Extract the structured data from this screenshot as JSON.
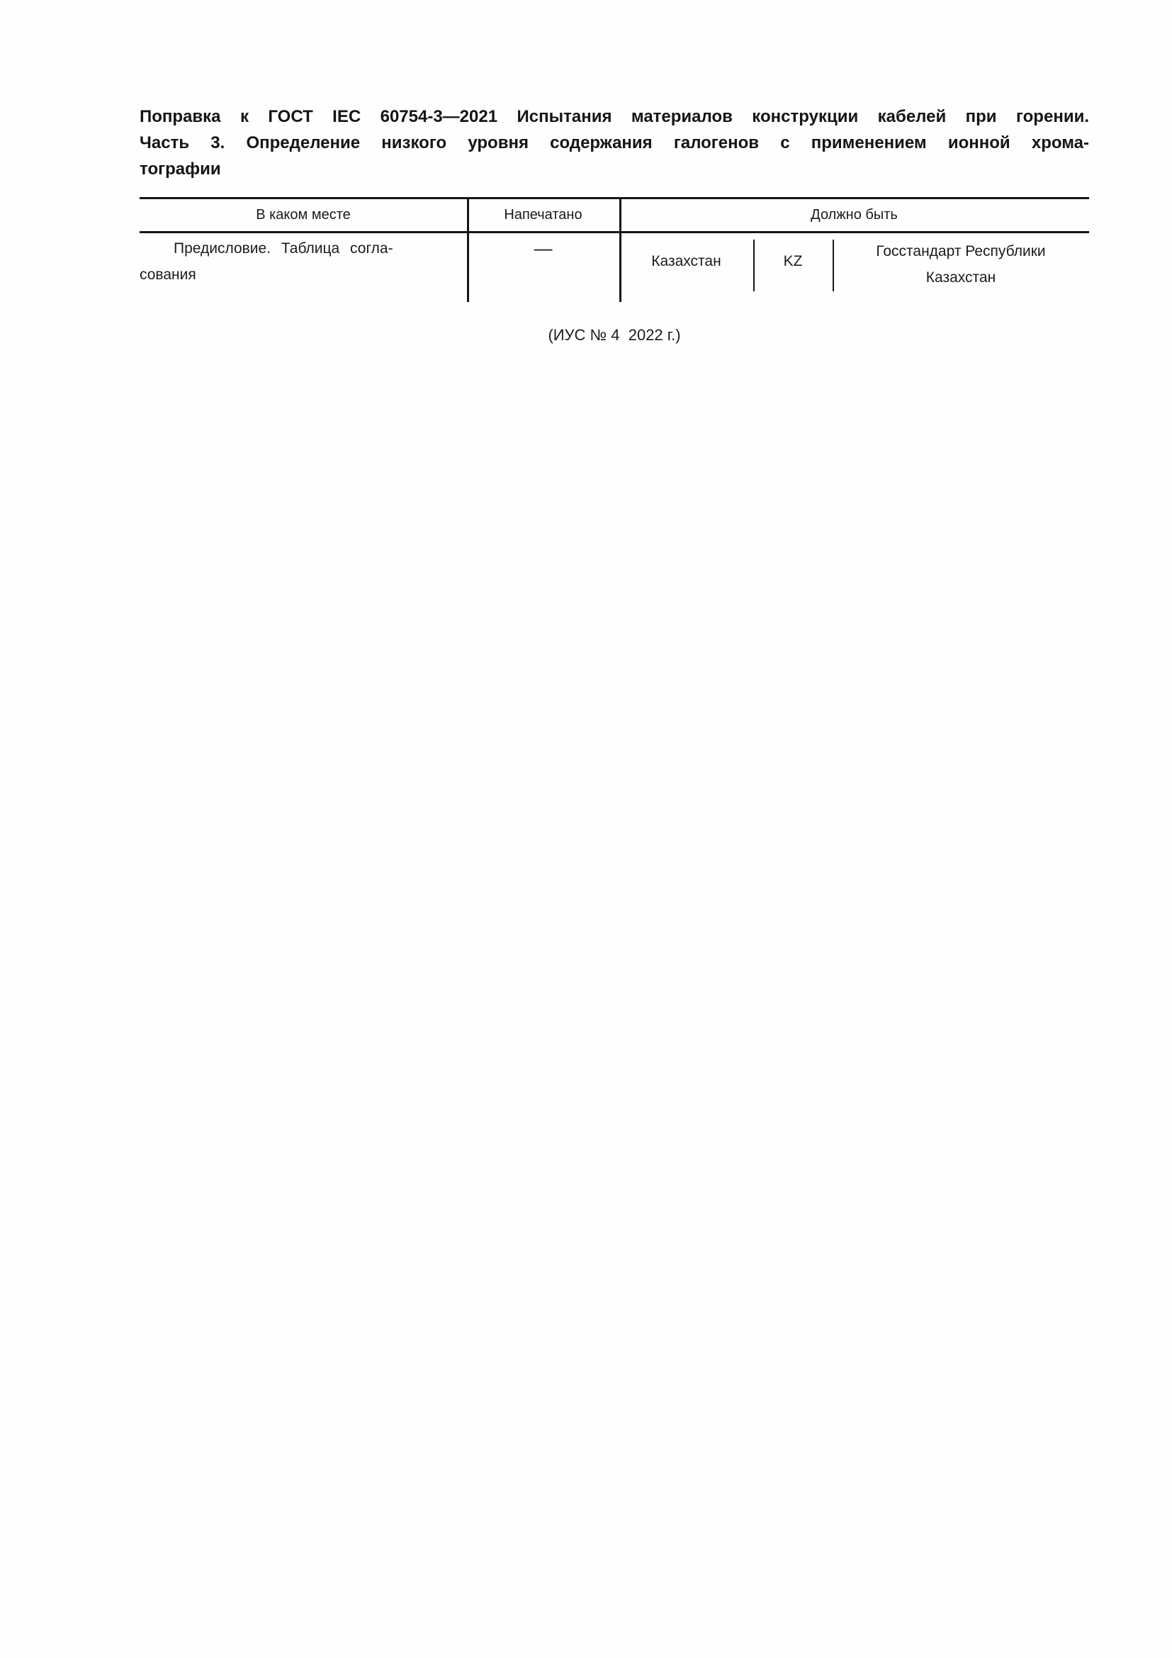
{
  "page": {
    "background": "#fefefe",
    "text_color": "#1a1a1a",
    "rule_color": "#161616"
  },
  "title": {
    "lines": [
      "Поправка к ГОСТ IEC 60754-3—2021 Испытания материалов конструкции кабелей при горении.",
      "Часть 3. Определение низкого уровня содержания галогенов с применением ионной хрома-",
      "тографии"
    ]
  },
  "table": {
    "headers": [
      "В каком месте",
      "Напечатано",
      "Должно быть"
    ],
    "row": {
      "location_lines": [
        "Предисловие. Таблица согла-",
        "сования"
      ],
      "printed": "—",
      "should_be": {
        "country": "Казахстан",
        "code": "KZ",
        "agency_lines": [
          "Госстандарт Республики",
          "Казахстан"
        ]
      }
    }
  },
  "footnote": "(ИУС № 4  2022 г.)"
}
